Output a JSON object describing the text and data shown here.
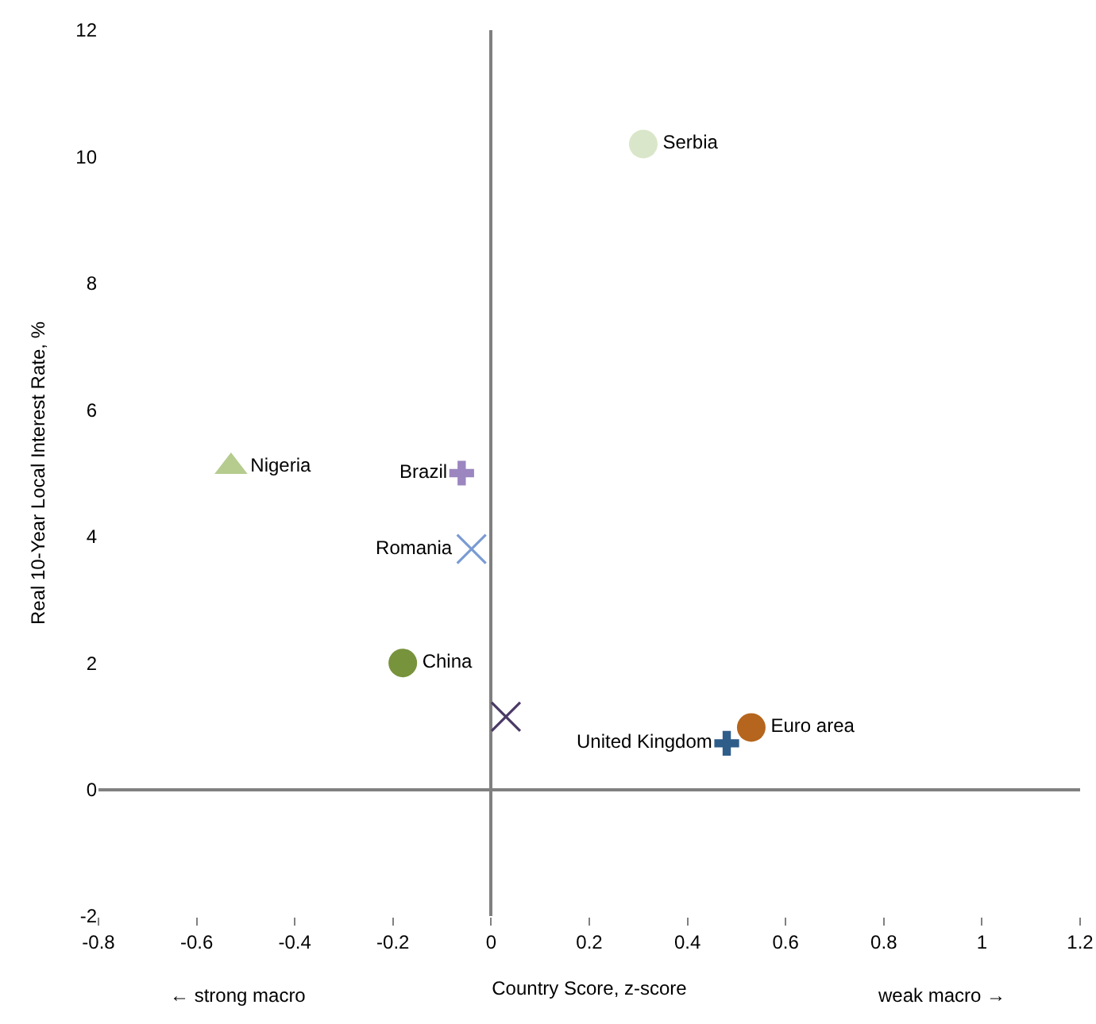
{
  "chart_data": {
    "type": "scatter",
    "xlabel": "Country Score, z-score",
    "ylabel": "Real 10-Year Local Interest Rate, %",
    "annotations": [
      "← strong macro",
      "weak macro →"
    ],
    "xlim": [
      -0.8,
      1.2
    ],
    "xticks": [
      -0.8,
      -0.6,
      -0.4,
      -0.2,
      0.0,
      0.2,
      0.4,
      0.6,
      0.8,
      1.0,
      1.2
    ],
    "ylim": [
      -2,
      12
    ],
    "yticks": [
      -2,
      0,
      2,
      4,
      6,
      8,
      10,
      12
    ],
    "legend": false,
    "series": [
      {
        "name": "Serbia",
        "color": "#d9e6c9",
        "marker": "circle",
        "x": [
          0.31
        ],
        "values": [
          10.2
        ]
      },
      {
        "name": "Nigeria",
        "color": "#b5cc8e",
        "marker": "triangle",
        "x": [
          -0.53
        ],
        "values": [
          5.1
        ]
      },
      {
        "name": "Brazil",
        "color": "#9b86c0",
        "marker": "cross",
        "x": [
          -0.06
        ],
        "values": [
          5.0
        ]
      },
      {
        "name": "Romania",
        "color": "#7a9bd3",
        "marker": "x",
        "x": [
          -0.04
        ],
        "values": [
          3.8
        ]
      },
      {
        "name": "China",
        "color": "#77933c",
        "marker": "circle",
        "x": [
          -0.18
        ],
        "values": [
          2.0
        ]
      },
      {
        "color": "#4a3a66",
        "marker": "x",
        "x": [
          0.03
        ],
        "values": [
          1.15
        ]
      },
      {
        "name": "United Kingdom",
        "color": "#2f5d8a",
        "marker": "cross",
        "x": [
          0.48
        ],
        "values": [
          0.73
        ]
      },
      {
        "name": "Euro area",
        "color": "#b5651d",
        "marker": "circle",
        "x": [
          0.53
        ],
        "values": [
          0.98
        ]
      }
    ]
  }
}
